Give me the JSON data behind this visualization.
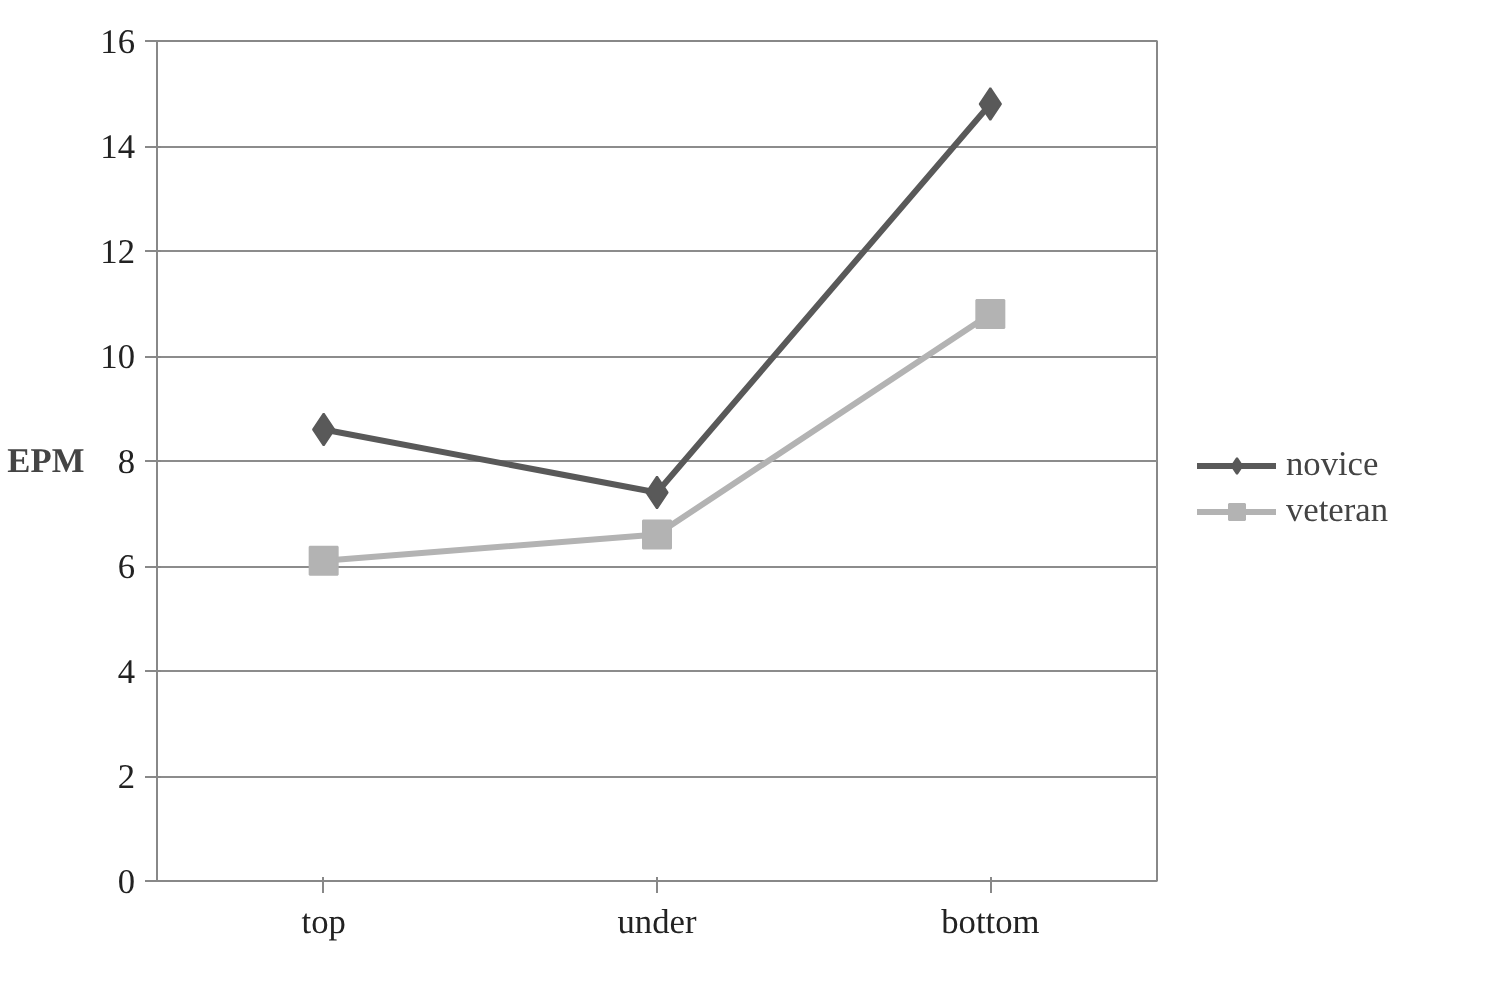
{
  "chart_data": {
    "type": "line",
    "ylabel": "EPM",
    "categories": [
      "top",
      "under",
      "bottom"
    ],
    "series": [
      {
        "name": "novice",
        "color": "#595959",
        "marker": "diamond",
        "values": [
          8.6,
          7.4,
          14.8
        ]
      },
      {
        "name": "veteran",
        "color": "#b3b3b3",
        "marker": "square",
        "values": [
          6.1,
          6.6,
          10.8
        ]
      }
    ],
    "ylim": [
      0,
      16
    ],
    "yticks": [
      0,
      2,
      4,
      6,
      8,
      10,
      12,
      14,
      16
    ],
    "grid": "y",
    "legend": "right"
  }
}
